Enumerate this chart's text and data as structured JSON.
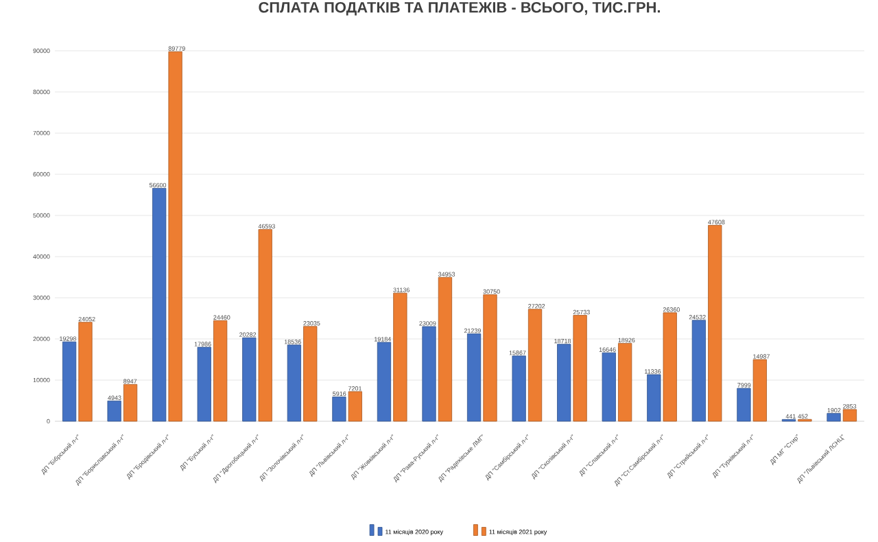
{
  "chart_data": {
    "type": "bar",
    "title": "СПЛАТА ПОДАТКІВ ТА ПЛАТЕЖІВ - ВСЬОГО, ТИС.ГРН.",
    "categories": [
      "ДП \"Бібрський л-г\"",
      "ДП \"Бориславський л-г\"",
      "ДП \"Бродівський л-г\"",
      "ДП \"Буський л-г\"",
      "ДП \"Дрогобицький л-г\"",
      "ДП \"Золочівський л-г\"",
      "ДП \"Львівський л-г\"",
      "ДП \"Жовківський л-г\"",
      "ДП \"Рава-Руський л-г\"",
      "ДП \"Радехівське ЛМГ\"",
      "ДП \"Самбірський л-г\"",
      "ДП \"Сколівський л-г\"",
      "ДП \"Славський л-г\"",
      "ДП \"Ст.Самбірський л-г\"",
      "ДП \"Стрийський л-г\"",
      "ДП \"Турківський л-г\"",
      "ДП МГ \"Стир\"",
      "ДП \"Львівський ЛСНЦ\""
    ],
    "series": [
      {
        "name": "11 місяців 2020 року",
        "color": "#4472c4",
        "values": [
          19298,
          4943,
          56600,
          17986,
          20282,
          18536,
          5916,
          19184,
          23009,
          21239,
          15867,
          18718,
          16646,
          11336,
          24532,
          7999,
          441,
          1902
        ]
      },
      {
        "name": "11 місяців 2021 року",
        "color": "#ed7d31",
        "values": [
          24052,
          8947,
          89779,
          24460,
          46593,
          23035,
          7201,
          31136,
          34953,
          30750,
          27202,
          25733,
          18926,
          26360,
          47608,
          14987,
          452,
          2853
        ]
      }
    ],
    "ylim": [
      0,
      90000
    ],
    "yticks": [
      0,
      10000,
      20000,
      30000,
      40000,
      50000,
      60000,
      70000,
      80000,
      90000
    ],
    "grid": "y",
    "legend": "bottom",
    "data_labels": true
  }
}
